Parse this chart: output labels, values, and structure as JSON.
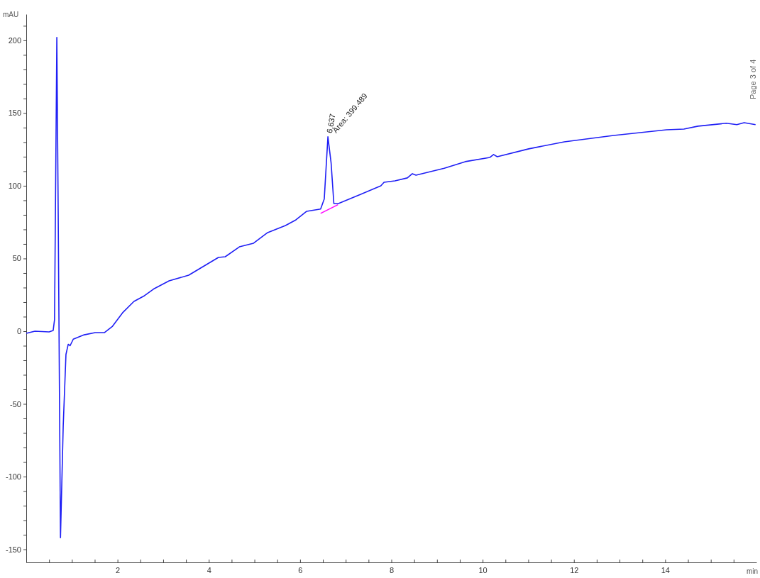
{
  "chart_data": {
    "type": "line",
    "xlabel": "min",
    "ylabel": "mAU",
    "xlim": [
      0,
      16
    ],
    "ylim": [
      -159,
      218
    ],
    "xticks": [
      {
        "value": 0.5,
        "label": null
      },
      {
        "value": 1,
        "label": null
      },
      {
        "value": 1.5,
        "label": null
      },
      2,
      {
        "value": 2.5,
        "label": null
      },
      {
        "value": 3,
        "label": null
      },
      {
        "value": 3.5,
        "label": null
      },
      4,
      {
        "value": 4.5,
        "label": null
      },
      {
        "value": 5,
        "label": null
      },
      {
        "value": 5.5,
        "label": null
      },
      6,
      {
        "value": 6.5,
        "label": null
      },
      {
        "value": 7,
        "label": null
      },
      {
        "value": 7.5,
        "label": null
      },
      8,
      {
        "value": 8.5,
        "label": null
      },
      {
        "value": 9,
        "label": null
      },
      {
        "value": 9.5,
        "label": null
      },
      10,
      {
        "value": 10.5,
        "label": null
      },
      {
        "value": 11,
        "label": null
      },
      {
        "value": 11.5,
        "label": null
      },
      12,
      {
        "value": 12.5,
        "label": null
      },
      {
        "value": 13,
        "label": null
      },
      {
        "value": 13.5,
        "label": null
      },
      14,
      {
        "value": 14.5,
        "label": null
      },
      {
        "value": 15,
        "label": null
      },
      {
        "value": 15.5,
        "label": null
      }
    ],
    "yticks": [
      -150,
      {
        "value": -140,
        "label": null
      },
      {
        "value": -130,
        "label": null
      },
      {
        "value": -120,
        "label": null
      },
      {
        "value": -110,
        "label": null
      },
      -100,
      {
        "value": -90,
        "label": null
      },
      {
        "value": -80,
        "label": null
      },
      {
        "value": -70,
        "label": null
      },
      {
        "value": -60,
        "label": null
      },
      -50,
      {
        "value": -40,
        "label": null
      },
      {
        "value": -30,
        "label": null
      },
      {
        "value": -20,
        "label": null
      },
      {
        "value": -10,
        "label": null
      },
      0,
      {
        "value": 10,
        "label": null
      },
      {
        "value": 20,
        "label": null
      },
      {
        "value": 30,
        "label": null
      },
      {
        "value": 40,
        "label": null
      },
      50,
      {
        "value": 60,
        "label": null
      },
      {
        "value": 70,
        "label": null
      },
      {
        "value": 80,
        "label": null
      },
      {
        "value": 90,
        "label": null
      },
      100,
      {
        "value": 110,
        "label": null
      },
      {
        "value": 120,
        "label": null
      },
      {
        "value": 130,
        "label": null
      },
      {
        "value": 140,
        "label": null
      },
      150,
      {
        "value": 160,
        "label": null
      },
      {
        "value": 170,
        "label": null
      },
      {
        "value": 180,
        "label": null
      },
      {
        "value": 190,
        "label": null
      },
      200,
      {
        "value": 210,
        "label": null
      }
    ],
    "grid": false,
    "marker": "none",
    "line_style": "solid",
    "series": [
      {
        "color": "#1f1ff5",
        "x": [
          0,
          0.19,
          0.5,
          0.59,
          0.62,
          0.67,
          0.7,
          0.75,
          0.81,
          0.87,
          0.92,
          0.96,
          1.03,
          1.27,
          1.51,
          1.71,
          1.89,
          2.12,
          2.36,
          2.59,
          2.79,
          3.13,
          3.56,
          3.82,
          4.21,
          4.36,
          4.67,
          4.98,
          5.29,
          5.68,
          5.91,
          6.14,
          6.45,
          6.53,
          6.61,
          6.68,
          6.74,
          6.84,
          7.3,
          7.77,
          7.84,
          8.08,
          8.35,
          8.46,
          8.54,
          9.16,
          9.62,
          10.16,
          10.24,
          10.32,
          11.01,
          11.79,
          12.87,
          14.03,
          14.41,
          14.72,
          15.34,
          15.57,
          15.73,
          15.98
        ],
        "values": [
          -1.5,
          0,
          -0.5,
          0.5,
          8,
          202,
          81,
          -142,
          -65,
          -16,
          -9,
          -10,
          -5.5,
          -2.5,
          -1,
          -1,
          3.4,
          13,
          20.5,
          24.4,
          29,
          34.6,
          38.5,
          43.4,
          50.7,
          51.2,
          58,
          60.5,
          67.8,
          72.7,
          76.6,
          82.4,
          84,
          91,
          133.7,
          115.6,
          87.8,
          87.8,
          93.7,
          100,
          102.4,
          103.4,
          105.4,
          108.3,
          107.3,
          112,
          116.6,
          119.5,
          121.5,
          120,
          125.4,
          130.2,
          134.6,
          138.5,
          139,
          141,
          143,
          142,
          143.4,
          142
        ]
      },
      {
        "type": "line",
        "color": "#ff00ff",
        "x": [
          6.45,
          6.83
        ],
        "values": [
          81,
          87
        ]
      }
    ],
    "annotations": [
      {
        "text": "6.637",
        "x": 6.637,
        "y": 134
      },
      {
        "text": "Area: 399.489",
        "x": 6.637,
        "y": 134
      },
      "Page 3 of 4"
    ]
  }
}
